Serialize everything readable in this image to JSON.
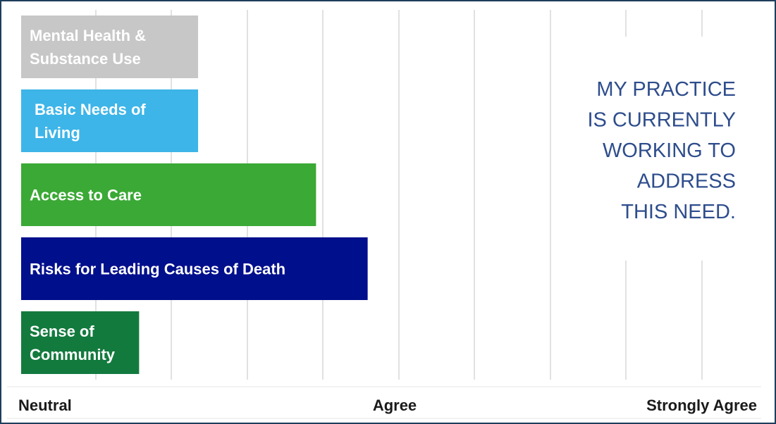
{
  "chart_data": {
    "type": "bar",
    "orientation": "horizontal",
    "categories": [
      "Mental Health & Substance Use",
      "Basic Needs of Living",
      "Access to Care",
      "Risks for Leading Causes of Death",
      "Sense of Community"
    ],
    "label_lines": [
      [
        "Mental Health &",
        "Substance Use"
      ],
      [
        "Basic Needs of",
        "Living"
      ],
      [
        "Access to Care"
      ],
      [
        "Risks for Leading Causes of Death"
      ],
      [
        "Sense of",
        "Community"
      ]
    ],
    "values": [
      0.24,
      0.24,
      0.4,
      0.47,
      0.16
    ],
    "xlim": [
      0,
      1
    ],
    "x_tick_labels": [
      "Neutral",
      "Agree",
      "Strongly Agree"
    ],
    "grid": true,
    "callout_lines": [
      "MY PRACTICE",
      "IS CURRENTLY",
      "WORKING TO",
      "ADDRESS",
      "THIS NEED."
    ],
    "colors": {
      "bars": [
        "#c7c7c7",
        "#3db5e8",
        "#3aa935",
        "#000f8c",
        "#137a3e"
      ],
      "gridline": "#e1e1e1",
      "callout_text": "#2e4d8c",
      "frame": "#1f3d5c"
    }
  }
}
